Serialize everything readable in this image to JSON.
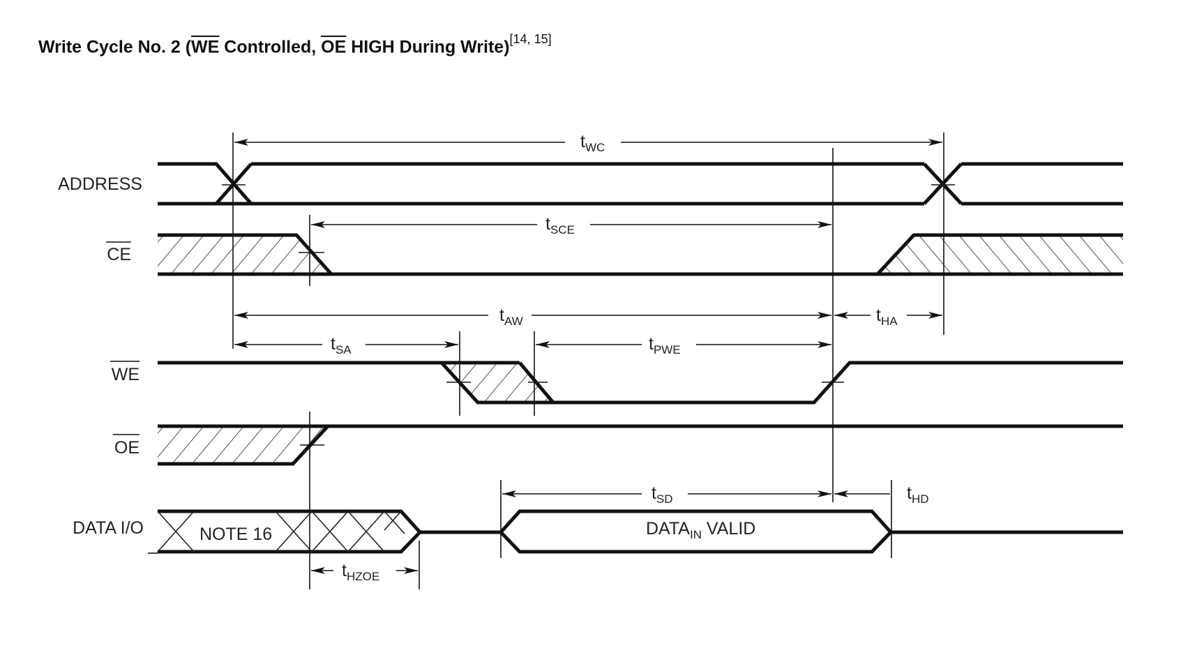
{
  "title": {
    "prefix": "Write Cycle No. 2 (",
    "we": "WE",
    "middle": " Controlled, ",
    "oe": "OE",
    "suffix": " HIGH During Write)",
    "refs": "[14, 15]"
  },
  "signals": {
    "address": "ADDRESS",
    "ce": "CE",
    "we": "WE",
    "oe": "OE",
    "data_io": "DATA I/O"
  },
  "timings": {
    "t_wc": "WC",
    "t_sce": "SCE",
    "t_aw": "AW",
    "t_ha": "HA",
    "t_sa": "SA",
    "t_pwe": "PWE",
    "t_sd": "SD",
    "t_hd": "HD",
    "t_hzoe": "HZOE",
    "t_prefix": "t"
  },
  "annotations": {
    "note16": "NOTE 16",
    "data_in_valid_prefix": "DATA",
    "data_in_valid_sub": "IN",
    "data_in_valid_suffix": " VALID"
  }
}
